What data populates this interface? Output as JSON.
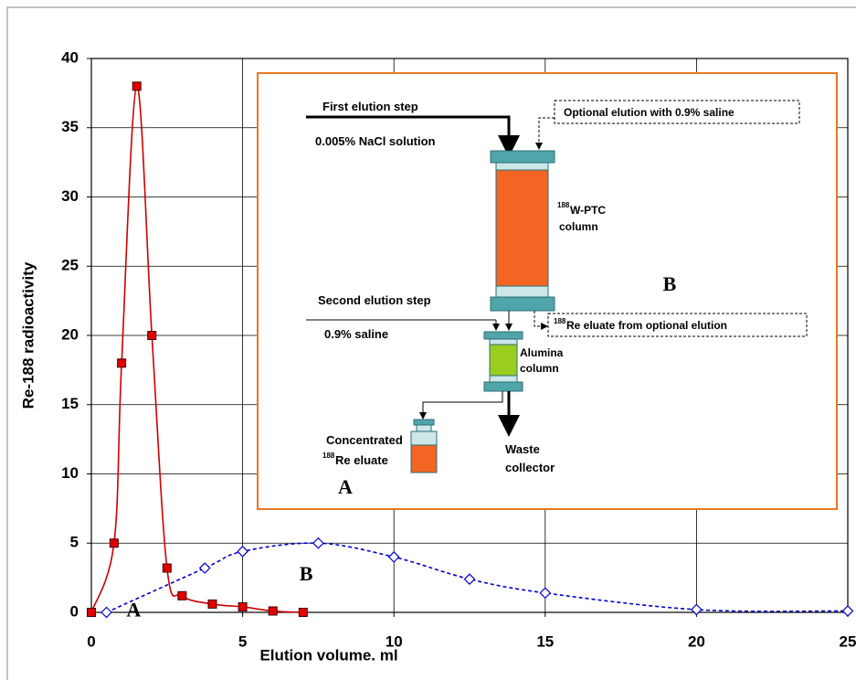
{
  "chart_data": {
    "type": "line",
    "xlabel": "Elution volume. ml",
    "ylabel": "Re-188 radioactivity",
    "xlim": [
      0,
      25
    ],
    "ylim": [
      0,
      40
    ],
    "xticks": [
      0,
      5,
      10,
      15,
      20,
      25
    ],
    "yticks": [
      0,
      5,
      10,
      15,
      20,
      25,
      30,
      35,
      40
    ],
    "grid": true,
    "series": [
      {
        "name": "A",
        "color": "#cc0000",
        "line_style": "solid",
        "marker": "square",
        "x": [
          0,
          0.75,
          1,
          1.5,
          2,
          2.5,
          3,
          4,
          5,
          6,
          7
        ],
        "values": [
          0,
          5,
          18,
          38,
          20,
          3.2,
          1.2,
          0.6,
          0.4,
          0.1,
          0
        ]
      },
      {
        "name": "B",
        "color": "#0000cc",
        "line_style": "dashed",
        "marker": "diamond",
        "x": [
          0.5,
          3.75,
          5,
          7.5,
          10,
          12.5,
          15,
          20,
          25
        ],
        "values": [
          0,
          3.2,
          4.4,
          5,
          4,
          2.4,
          1.4,
          0.2,
          0.1
        ]
      }
    ],
    "annotations": [
      {
        "text": "A",
        "x": 1.4,
        "y": -0.3
      },
      {
        "text": "B",
        "x": 7.1,
        "y": 2.3
      }
    ],
    "inset": {
      "first_step": "First elution step",
      "first_solution": "0.005% NaCl solution",
      "optional": "Optional elution with 0.9% saline",
      "column_sup": "188",
      "column_line1": "W-PTC",
      "column_line2": "column",
      "label_b": "B",
      "second_step": "Second elution step",
      "second_solution": "0.9% saline",
      "eluate_sup": "188",
      "eluate_text": "Re eluate from optional elution",
      "alumina_line1": "Alumina",
      "alumina_line2": "column",
      "conc_line1": "Concentrated",
      "conc_sup": "188",
      "conc_line2": "Re eluate",
      "waste_line1": "Waste",
      "waste_line2": "collector",
      "label_a": "A"
    }
  }
}
